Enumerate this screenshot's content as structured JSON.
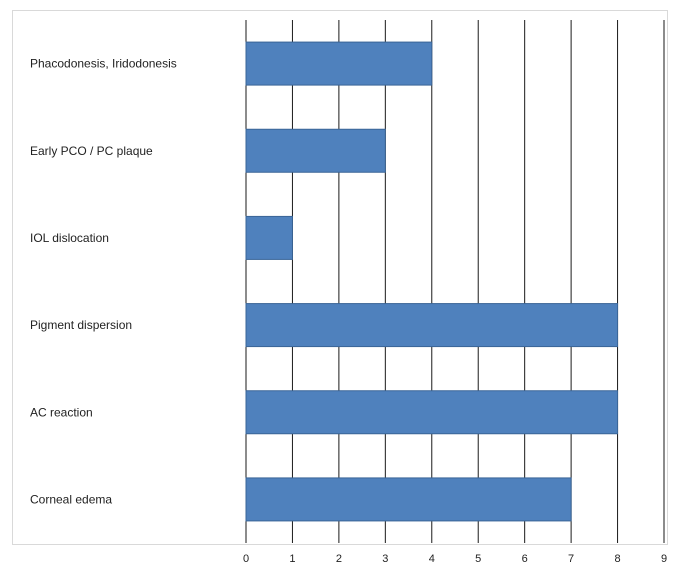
{
  "chart_data": {
    "type": "bar",
    "orientation": "horizontal",
    "categories": [
      "Phacodonesis, Iridodonesis",
      "Early PCO / PC plaque",
      "IOL dislocation",
      "Pigment dispersion",
      "AC reaction",
      "Corneal edema"
    ],
    "values": [
      4,
      3,
      1,
      8,
      8,
      7
    ],
    "xlim": [
      0,
      9
    ],
    "x_ticks": [
      "0",
      "1",
      "2",
      "3",
      "4",
      "5",
      "6",
      "7",
      "8",
      "9"
    ],
    "grid": true,
    "legend": "none",
    "title": "",
    "xlabel": "",
    "ylabel": "",
    "colors": {
      "bar": "#4f81bd",
      "bar_edge": "#3a6597",
      "grid": "#1a1a1a",
      "frame": "#d9d9d9"
    }
  }
}
